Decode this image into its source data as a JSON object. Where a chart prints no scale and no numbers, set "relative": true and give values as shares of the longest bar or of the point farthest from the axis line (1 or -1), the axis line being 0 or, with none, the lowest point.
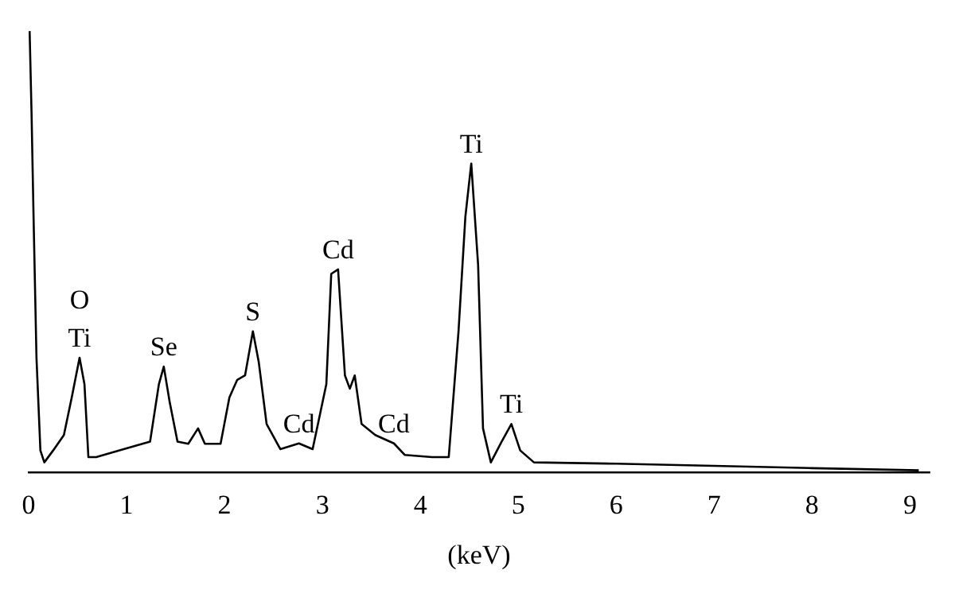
{
  "chart_data": {
    "type": "line",
    "relative": true,
    "xlabel": "(keV)",
    "xlim": [
      0,
      9.2
    ],
    "xticks": [
      0,
      1,
      2,
      3,
      4,
      5,
      6,
      7,
      8,
      9
    ],
    "grid": false,
    "legend": false,
    "marker": "none",
    "color": "#000000",
    "x": [
      0.01,
      0.03,
      0.05,
      0.08,
      0.12,
      0.16,
      0.25,
      0.36,
      0.44,
      0.52,
      0.57,
      0.61,
      0.69,
      0.97,
      1.24,
      1.33,
      1.38,
      1.44,
      1.52,
      1.63,
      1.73,
      1.8,
      1.96,
      2.05,
      2.13,
      2.21,
      2.29,
      2.35,
      2.43,
      2.57,
      2.76,
      2.9,
      3.04,
      3.09,
      3.16,
      3.23,
      3.28,
      3.33,
      3.4,
      3.54,
      3.73,
      3.84,
      4.12,
      4.29,
      4.39,
      4.46,
      4.52,
      4.59,
      4.64,
      4.72,
      4.83,
      4.93,
      5.02,
      5.16,
      6.0,
      7.0,
      8.0,
      9.09
    ],
    "values": [
      1.0,
      0.81,
      0.58,
      0.26,
      0.05,
      0.023,
      0.05,
      0.085,
      0.17,
      0.26,
      0.2,
      0.035,
      0.035,
      0.053,
      0.07,
      0.2,
      0.24,
      0.16,
      0.07,
      0.065,
      0.1,
      0.065,
      0.065,
      0.17,
      0.21,
      0.22,
      0.32,
      0.25,
      0.11,
      0.053,
      0.066,
      0.053,
      0.2,
      0.45,
      0.46,
      0.22,
      0.19,
      0.22,
      0.11,
      0.085,
      0.066,
      0.04,
      0.035,
      0.035,
      0.32,
      0.58,
      0.7,
      0.47,
      0.1,
      0.023,
      0.07,
      0.11,
      0.05,
      0.023,
      0.02,
      0.015,
      0.01,
      0.005
    ],
    "annotations": [
      {
        "text": "Ti",
        "x": 0.52,
        "y": 0.26
      },
      {
        "text": "O",
        "x": 0.52,
        "y": 0.26
      },
      {
        "text": "Se",
        "x": 1.38,
        "y": 0.24
      },
      {
        "text": "S",
        "x": 2.29,
        "y": 0.32
      },
      {
        "text": "Cd",
        "x": 2.76,
        "y": 0.066
      },
      {
        "text": "Cd",
        "x": 3.16,
        "y": 0.46
      },
      {
        "text": "Cd",
        "x": 3.73,
        "y": 0.066
      },
      {
        "text": "Ti",
        "x": 4.52,
        "y": 0.7
      },
      {
        "text": "Ti",
        "x": 4.93,
        "y": 0.11
      }
    ]
  }
}
